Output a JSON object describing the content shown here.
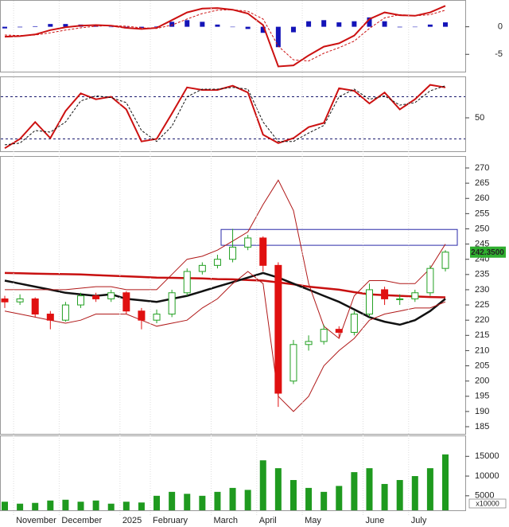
{
  "chart_data": [
    {
      "type": "line",
      "ylim": [
        -8.14,
        4.71
      ],
      "yticks": [
        0,
        -5
      ],
      "series": [
        {
          "mark": "bar",
          "color": "#1414b8",
          "values": [
            -0.3,
            -0.1,
            0.1,
            0.5,
            0.5,
            0.4,
            0.2,
            0,
            -0.3,
            -0.2,
            0.1,
            0.9,
            1.2,
            0.9,
            0.4,
            0,
            -0.4,
            -1.1,
            -3.7,
            -1.0,
            1.0,
            1.2,
            0.8,
            1.0,
            1.7,
            1.0,
            -0.1,
            0,
            0.4,
            0.8
          ]
        },
        {
          "mark": "line",
          "color": "#cc1111",
          "dashed": false,
          "values": [
            -1.8,
            -1.7,
            -1.4,
            -0.6,
            -0.1,
            0.2,
            0.3,
            0.2,
            -0.2,
            -0.4,
            -0.2,
            1.2,
            2.6,
            3.3,
            3.4,
            3.1,
            2.4,
            0.3,
            -7.2,
            -7.0,
            -5.2,
            -3.6,
            -3.0,
            -1.6,
            1.4,
            2.6,
            2.1,
            2.0,
            2.6,
            3.8
          ]
        },
        {
          "mark": "line",
          "color": "#cc1111",
          "dashed": true,
          "values": [
            -1.5,
            -1.6,
            -1.5,
            -1.1,
            -0.6,
            -0.2,
            0.1,
            0.2,
            0.1,
            -0.2,
            -0.3,
            0.3,
            1.4,
            2.4,
            3.0,
            3.1,
            2.8,
            1.4,
            -3.5,
            -6.0,
            -6.2,
            -4.8,
            -3.8,
            -2.6,
            -0.3,
            1.6,
            2.2,
            2.0,
            2.2,
            3.0
          ]
        }
      ]
    },
    {
      "type": "line",
      "ylim": [
        10.4,
        98.1
      ],
      "yticks": [
        50
      ],
      "levels": [
        25,
        75
      ],
      "level_color": "#1a1a6e",
      "series": [
        {
          "mark": "line",
          "color": "#cc1111",
          "dashed": false,
          "values": [
            14,
            25,
            45,
            26,
            58,
            79,
            72,
            75,
            60,
            22,
            25,
            55,
            86,
            83,
            83,
            88,
            80,
            30,
            20,
            26,
            39,
            44,
            85,
            82,
            67,
            80,
            60,
            72,
            89,
            86
          ]
        },
        {
          "mark": "line",
          "color": "#111111",
          "dashed": true,
          "values": [
            18,
            20,
            35,
            33,
            45,
            70,
            76,
            74,
            68,
            35,
            22,
            40,
            75,
            84,
            84,
            86,
            84,
            45,
            22,
            22,
            32,
            41,
            75,
            84,
            72,
            76,
            65,
            68,
            82,
            88
          ]
        }
      ]
    },
    {
      "type": "candlestick",
      "ylim": [
        182.65,
        273.66
      ],
      "yticks": [
        185,
        190,
        195,
        200,
        205,
        210,
        215,
        220,
        225,
        230,
        235,
        240,
        245,
        250,
        255,
        260,
        265,
        270
      ],
      "up_color": "#22a022",
      "down_color": "#e01010",
      "open": [
        227,
        226,
        227,
        222,
        220,
        225,
        228,
        227,
        229,
        223,
        220,
        222,
        229,
        236,
        238,
        240,
        244,
        247,
        238,
        200,
        212,
        213,
        217,
        216,
        222,
        230,
        227,
        227,
        229,
        237
      ],
      "high": [
        228,
        228.5,
        227.5,
        223,
        226,
        229,
        229,
        230,
        229.5,
        224,
        223.5,
        230,
        237,
        239,
        241.5,
        250,
        248,
        247.5,
        239,
        213.5,
        215,
        218.5,
        218,
        223,
        232,
        231,
        228.5,
        230,
        238,
        243
      ],
      "low": [
        224,
        225,
        221,
        217,
        219.5,
        224,
        226,
        226,
        222,
        217,
        219,
        221,
        228,
        235,
        237,
        239,
        243,
        236,
        191.5,
        199,
        210,
        212,
        214,
        215,
        221,
        225,
        225,
        226,
        228,
        236
      ],
      "close": [
        226,
        227,
        222,
        220,
        225,
        228,
        227,
        229,
        223,
        220,
        222,
        229,
        236,
        238,
        240,
        244,
        247,
        238,
        196,
        212,
        213,
        217,
        216,
        222,
        230,
        227,
        227,
        229,
        237,
        242.35
      ],
      "last_label": "242.3500",
      "zone": {
        "low": 244.6,
        "high": 249.8,
        "color": "#2a2aa8"
      },
      "overlays": [
        {
          "color": "#c81010",
          "width": 2.5,
          "values": [
            235.5,
            235.4,
            235.3,
            235.2,
            235.1,
            235,
            234.8,
            234.6,
            234.4,
            234.2,
            234,
            233.9,
            233.8,
            233.7,
            233.5,
            233.4,
            233.2,
            233,
            232.4,
            231.8,
            231,
            230.5,
            230,
            229.2,
            228.5,
            228.2,
            228,
            227.8,
            227.6,
            227.5
          ]
        },
        {
          "color": "#111111",
          "width": 2.5,
          "values": [
            233,
            232,
            231,
            230,
            229,
            228.5,
            228,
            228.5,
            227,
            226.5,
            226,
            227,
            228,
            229.5,
            231,
            232.5,
            234,
            235.5,
            234,
            232,
            230,
            228,
            226,
            223.5,
            221,
            219.5,
            218.5,
            220,
            223,
            227
          ]
        },
        {
          "color": "#b01818",
          "width": 1,
          "values": [
            230,
            230,
            230,
            230,
            230,
            230.5,
            231,
            231,
            230,
            230,
            230,
            235,
            240,
            241,
            243,
            246,
            249,
            258,
            266,
            256,
            232,
            218,
            214,
            228,
            233,
            233,
            232,
            232,
            237,
            245
          ]
        },
        {
          "color": "#b01818",
          "width": 1,
          "values": [
            223,
            222,
            221,
            220,
            219,
            220,
            222,
            222,
            222,
            220,
            218,
            219,
            220,
            224,
            227,
            232,
            236,
            232,
            195,
            190,
            195,
            205,
            210,
            214,
            220,
            222,
            223,
            224,
            224,
            226
          ]
        }
      ]
    },
    {
      "type": "bar",
      "ylim": [
        1327,
        20102
      ],
      "yticks": [
        5000,
        10000,
        15000
      ],
      "unit_label": "x10000",
      "color": "#1f9a1f",
      "categories": [
        null,
        "November",
        null,
        null,
        "December",
        null,
        null,
        null,
        "2025",
        null,
        "February",
        null,
        null,
        null,
        "March",
        null,
        null,
        "April",
        null,
        null,
        "May",
        null,
        null,
        null,
        "June",
        null,
        null,
        "July",
        null,
        null
      ],
      "values": [
        3500,
        3000,
        3200,
        3800,
        4000,
        3500,
        3800,
        3000,
        3500,
        3300,
        5000,
        6000,
        5500,
        5000,
        6000,
        7000,
        6500,
        14000,
        12000,
        9000,
        7000,
        6000,
        7500,
        11000,
        12000,
        8000,
        9000,
        10000,
        12000,
        15500
      ]
    }
  ]
}
